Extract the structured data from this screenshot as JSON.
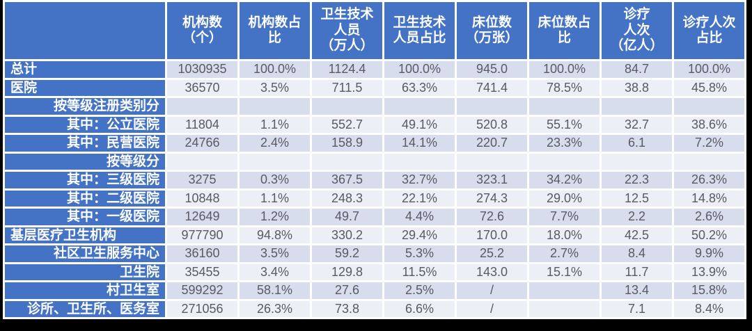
{
  "page": {
    "background_color": "#000000",
    "panel_color": "#ffffff"
  },
  "style": {
    "header_bg": "#4472c4",
    "row_stripe_dark": "#d8ddee",
    "row_stripe_light": "#edeff7",
    "header_text_color": "#ffffff",
    "value_text_color": "#595961"
  },
  "chart_data": {
    "type": "table",
    "corner_label": "",
    "columns": [
      "机构数\n（个）",
      "机构数占\n比",
      "卫生技术\n人员\n（万人）",
      "卫生技术\n人员占比",
      "床位数\n（万张）",
      "床位数占\n比",
      "诊疗\n人次\n（亿人）",
      "诊疗人次\n占比"
    ],
    "rows": [
      {
        "label": "总计",
        "align": "left",
        "values": [
          "1030935",
          "100.0%",
          "1124.4",
          "100.0%",
          "945.0",
          "100.0%",
          "84.7",
          "100.0%"
        ]
      },
      {
        "label": "医院",
        "align": "left",
        "values": [
          "36570",
          "3.5%",
          "711.5",
          "63.3%",
          "741.4",
          "78.5%",
          "38.8",
          "45.8%"
        ]
      },
      {
        "label": "按等级注册类别分",
        "align": "right",
        "values": [
          "",
          "",
          "",
          "",
          "",
          "",
          "",
          ""
        ]
      },
      {
        "label": "其中：公立医院",
        "align": "right",
        "values": [
          "11804",
          "1.1%",
          "552.7",
          "49.1%",
          "520.8",
          "55.1%",
          "32.7",
          "38.6%"
        ]
      },
      {
        "label": "其中：民营医院",
        "align": "right",
        "values": [
          "24766",
          "2.4%",
          "158.9",
          "14.1%",
          "220.7",
          "23.3%",
          "6.1",
          "7.2%"
        ]
      },
      {
        "label": "按等级分",
        "align": "right",
        "values": [
          "",
          "",
          "",
          "",
          "",
          "",
          "",
          ""
        ]
      },
      {
        "label": "其中：三级医院",
        "align": "right",
        "values": [
          "3275",
          "0.3%",
          "367.5",
          "32.7%",
          "323.1",
          "34.2%",
          "22.3",
          "26.3%"
        ]
      },
      {
        "label": "其中：二级医院",
        "align": "right",
        "values": [
          "10848",
          "1.1%",
          "248.3",
          "22.1%",
          "274.3",
          "29.0%",
          "12.5",
          "14.8%"
        ]
      },
      {
        "label": "其中：一级医院",
        "align": "right",
        "values": [
          "12649",
          "1.2%",
          "49.7",
          "4.4%",
          "72.6",
          "7.7%",
          "2.2",
          "2.6%"
        ]
      },
      {
        "label": "基层医疗卫生机构",
        "align": "left",
        "values": [
          "977790",
          "94.8%",
          "330.2",
          "29.4%",
          "170.0",
          "18.0%",
          "42.5",
          "50.2%"
        ]
      },
      {
        "label": "社区卫生服务中心",
        "align": "right",
        "values": [
          "36160",
          "3.5%",
          "59.2",
          "5.3%",
          "25.2",
          "2.7%",
          "8.4",
          "9.9%"
        ]
      },
      {
        "label": "卫生院",
        "align": "right",
        "values": [
          "35455",
          "3.4%",
          "129.8",
          "11.5%",
          "143.0",
          "15.1%",
          "11.7",
          "13.9%"
        ]
      },
      {
        "label": "村卫生室",
        "align": "right",
        "values": [
          "599292",
          "58.1%",
          "27.6",
          "2.5%",
          "/",
          "",
          "13.4",
          "15.8%"
        ]
      },
      {
        "label": "诊所、卫生所、医务室",
        "align": "right",
        "values": [
          "271056",
          "26.3%",
          "73.8",
          "6.6%",
          "/",
          "",
          "7.1",
          "8.4%"
        ]
      }
    ]
  }
}
